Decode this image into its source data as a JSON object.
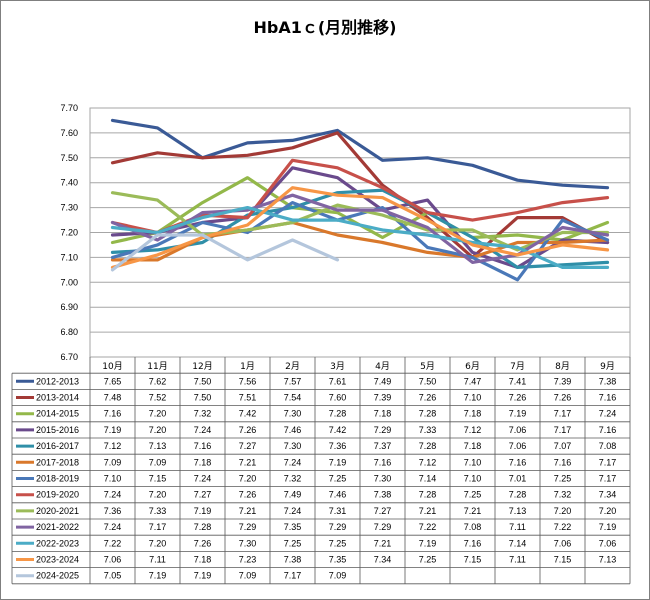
{
  "chart_data": {
    "type": "line",
    "title": "HbA1ｃ(月別推移)",
    "xlabel": "",
    "ylabel": "",
    "ylim": [
      6.7,
      7.7
    ],
    "ytick_labels": [
      "7.70",
      "7.60",
      "7.50",
      "7.40",
      "7.30",
      "7.20",
      "7.10",
      "7.00",
      "6.90",
      "6.80",
      "6.70"
    ],
    "grid": true,
    "legend": "data table below chart",
    "categories": [
      "10月",
      "11月",
      "12月",
      "1月",
      "2月",
      "3月",
      "4月",
      "5月",
      "6月",
      "7月",
      "8月",
      "9月"
    ],
    "series": [
      {
        "name": "2012-2013",
        "color": "#3a5a96",
        "values": [
          7.65,
          7.62,
          7.5,
          7.56,
          7.57,
          7.61,
          7.49,
          7.5,
          7.47,
          7.41,
          7.39,
          7.38
        ]
      },
      {
        "name": "2013-2014",
        "color": "#a33a36",
        "values": [
          7.48,
          7.52,
          7.5,
          7.51,
          7.54,
          7.6,
          7.39,
          7.26,
          7.1,
          7.26,
          7.26,
          7.16
        ]
      },
      {
        "name": "2014-2015",
        "color": "#93b84a",
        "values": [
          7.16,
          7.2,
          7.32,
          7.42,
          7.3,
          7.28,
          7.18,
          7.28,
          7.18,
          7.19,
          7.17,
          7.24
        ]
      },
      {
        "name": "2015-2016",
        "color": "#6a4a8c",
        "values": [
          7.19,
          7.2,
          7.24,
          7.26,
          7.46,
          7.42,
          7.29,
          7.33,
          7.12,
          7.06,
          7.17,
          7.16
        ]
      },
      {
        "name": "2016-2017",
        "color": "#2f8fa8",
        "values": [
          7.12,
          7.13,
          7.16,
          7.27,
          7.3,
          7.36,
          7.37,
          7.28,
          7.18,
          7.06,
          7.07,
          7.08
        ]
      },
      {
        "name": "2017-2018",
        "color": "#d9782b",
        "values": [
          7.09,
          7.09,
          7.18,
          7.21,
          7.24,
          7.19,
          7.16,
          7.12,
          7.1,
          7.16,
          7.16,
          7.17
        ]
      },
      {
        "name": "2018-2019",
        "color": "#4a78b8",
        "values": [
          7.1,
          7.15,
          7.24,
          7.2,
          7.32,
          7.25,
          7.3,
          7.14,
          7.1,
          7.01,
          7.25,
          7.17
        ]
      },
      {
        "name": "2019-2020",
        "color": "#c7504a",
        "values": [
          7.24,
          7.2,
          7.27,
          7.26,
          7.49,
          7.46,
          7.38,
          7.28,
          7.25,
          7.28,
          7.32,
          7.34
        ]
      },
      {
        "name": "2020-2021",
        "color": "#9bbb59",
        "values": [
          7.36,
          7.33,
          7.19,
          7.21,
          7.24,
          7.31,
          7.27,
          7.21,
          7.21,
          7.13,
          7.2,
          7.2
        ]
      },
      {
        "name": "2021-2022",
        "color": "#8064a2",
        "values": [
          7.24,
          7.17,
          7.28,
          7.29,
          7.35,
          7.29,
          7.29,
          7.22,
          7.08,
          7.11,
          7.22,
          7.19
        ]
      },
      {
        "name": "2022-2023",
        "color": "#4bacc6",
        "values": [
          7.22,
          7.2,
          7.26,
          7.3,
          7.25,
          7.25,
          7.21,
          7.19,
          7.16,
          7.14,
          7.06,
          7.06
        ]
      },
      {
        "name": "2023-2024",
        "color": "#f79646",
        "values": [
          7.06,
          7.11,
          7.18,
          7.23,
          7.38,
          7.35,
          7.34,
          7.25,
          7.15,
          7.11,
          7.15,
          7.13
        ]
      },
      {
        "name": "2024-2025",
        "color": "#b4c6dc",
        "values": [
          7.05,
          7.19,
          7.19,
          7.09,
          7.17,
          7.09,
          null,
          null,
          null,
          null,
          null,
          null
        ]
      }
    ],
    "table_cells": [
      [
        "7.65",
        "7.62",
        "7.50",
        "7.56",
        "7.57",
        "7.61",
        "7.49",
        "7.50",
        "7.47",
        "7.41",
        "7.39",
        "7.38"
      ],
      [
        "7.48",
        "7.52",
        "7.50",
        "7.51",
        "7.54",
        "7.60",
        "7.39",
        "7.26",
        "7.10",
        "7.26",
        "7.26",
        "7.16"
      ],
      [
        "7.16",
        "7.20",
        "7.32",
        "7.42",
        "7.30",
        "7.28",
        "7.18",
        "7.28",
        "7.18",
        "7.19",
        "7.17",
        "7.24"
      ],
      [
        "7.19",
        "7.20",
        "7.24",
        "7.26",
        "7.46",
        "7.42",
        "7.29",
        "7.33",
        "7.12",
        "7.06",
        "7.17",
        "7.16"
      ],
      [
        "7.12",
        "7.13",
        "7.16",
        "7.27",
        "7.30",
        "7.36",
        "7.37",
        "7.28",
        "7.18",
        "7.06",
        "7.07",
        "7.08"
      ],
      [
        "7.09",
        "7.09",
        "7.18",
        "7.21",
        "7.24",
        "7.19",
        "7.16",
        "7.12",
        "7.10",
        "7.16",
        "7.16",
        "7.17"
      ],
      [
        "7.10",
        "7.15",
        "7.24",
        "7.20",
        "7.32",
        "7.25",
        "7.30",
        "7.14",
        "7.10",
        "7.01",
        "7.25",
        "7.17"
      ],
      [
        "7.24",
        "7.20",
        "7.27",
        "7.26",
        "7.49",
        "7.46",
        "7.38",
        "7.28",
        "7.25",
        "7.28",
        "7.32",
        "7.34"
      ],
      [
        "7.36",
        "7.33",
        "7.19",
        "7.21",
        "7.24",
        "7.31",
        "7.27",
        "7.21",
        "7.21",
        "7.13",
        "7.20",
        "7.20"
      ],
      [
        "7.24",
        "7.17",
        "7.28",
        "7.29",
        "7.35",
        "7.29",
        "7.29",
        "7.22",
        "7.08",
        "7.11",
        "7.22",
        "7.19"
      ],
      [
        "7.22",
        "7.20",
        "7.26",
        "7.30",
        "7.25",
        "7.25",
        "7.21",
        "7.19",
        "7.16",
        "7.14",
        "7.06",
        "7.06"
      ],
      [
        "7.06",
        "7.11",
        "7.18",
        "7.23",
        "7.38",
        "7.35",
        "7.34",
        "7.25",
        "7.15",
        "7.11",
        "7.15",
        "7.13"
      ],
      [
        "7.05",
        "7.19",
        "7.19",
        "7.09",
        "7.17",
        "7.09",
        "",
        "",
        "",
        "",
        "",
        ""
      ]
    ]
  }
}
